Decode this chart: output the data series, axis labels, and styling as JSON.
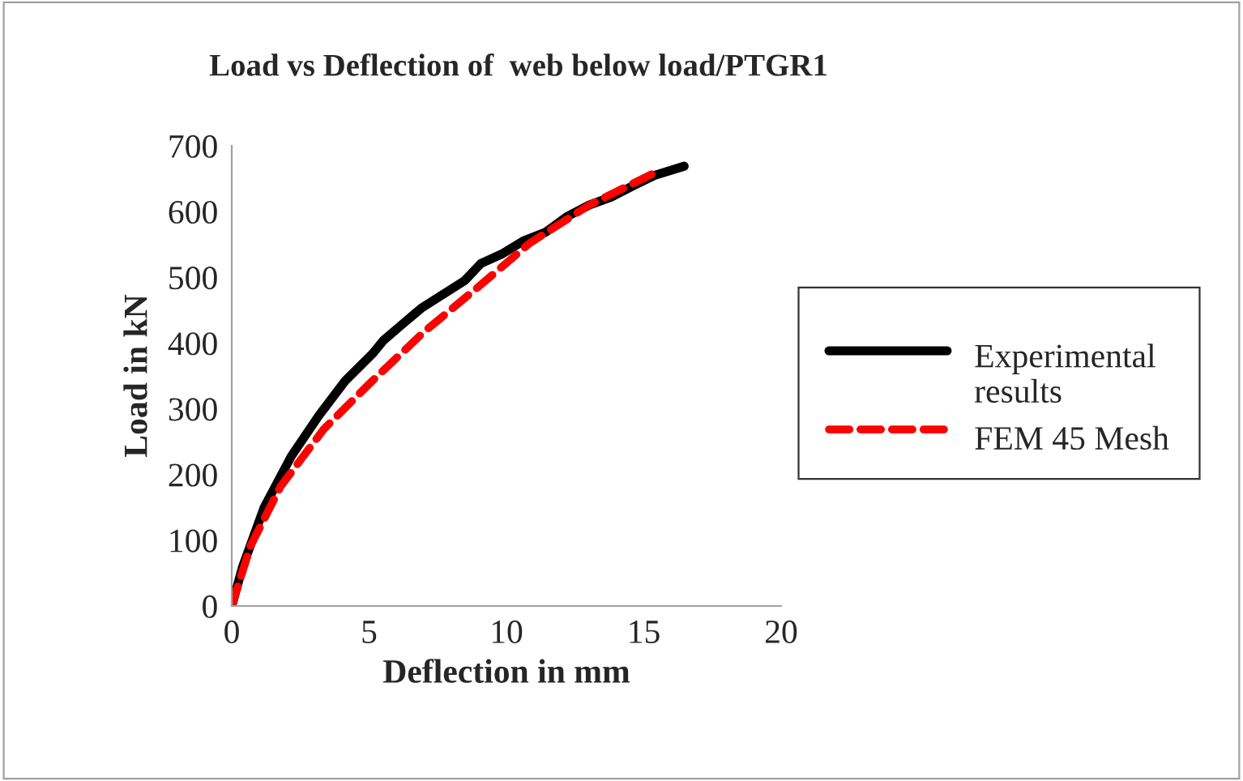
{
  "chart_data": {
    "type": "line",
    "title": "Load vs Deflection of  web below load/PTGR1",
    "xlabel": "Deflection in mm",
    "ylabel": "Load in kN",
    "series": [
      {
        "name": "Experimental results",
        "color": "#000000",
        "line_style": "solid",
        "x": [
          0,
          0.39,
          1.18,
          2.17,
          3.16,
          4.14,
          5.13,
          5.52,
          6.11,
          6.9,
          7.69,
          8.48,
          9.07,
          9.86,
          10.65,
          11.44,
          12.23,
          13.02,
          13.81,
          14.6,
          15.39,
          16.47
        ],
        "values": [
          0,
          59,
          150,
          228,
          289,
          343,
          384,
          404,
          425,
          453,
          474,
          495,
          521,
          536,
          556,
          569,
          593,
          610,
          622,
          639,
          655,
          669
        ]
      },
      {
        "name": "FEM 45 Mesh",
        "color": "#ff0000",
        "line_style": "dashed",
        "x": [
          0,
          0.69,
          1.78,
          3.35,
          5.13,
          7.0,
          8.88,
          10.85,
          13.02,
          15.58
        ],
        "values": [
          0,
          92,
          182,
          269,
          343,
          417,
          482,
          552,
          610,
          663
        ]
      }
    ],
    "xlim": [
      0,
      20
    ],
    "xticks": [
      0,
      5,
      10,
      15,
      20
    ],
    "ylim": [
      0,
      700
    ],
    "yticks": [
      0,
      100,
      200,
      300,
      400,
      500,
      600,
      700
    ],
    "grid": false,
    "legend": "right",
    "marker": "none"
  }
}
